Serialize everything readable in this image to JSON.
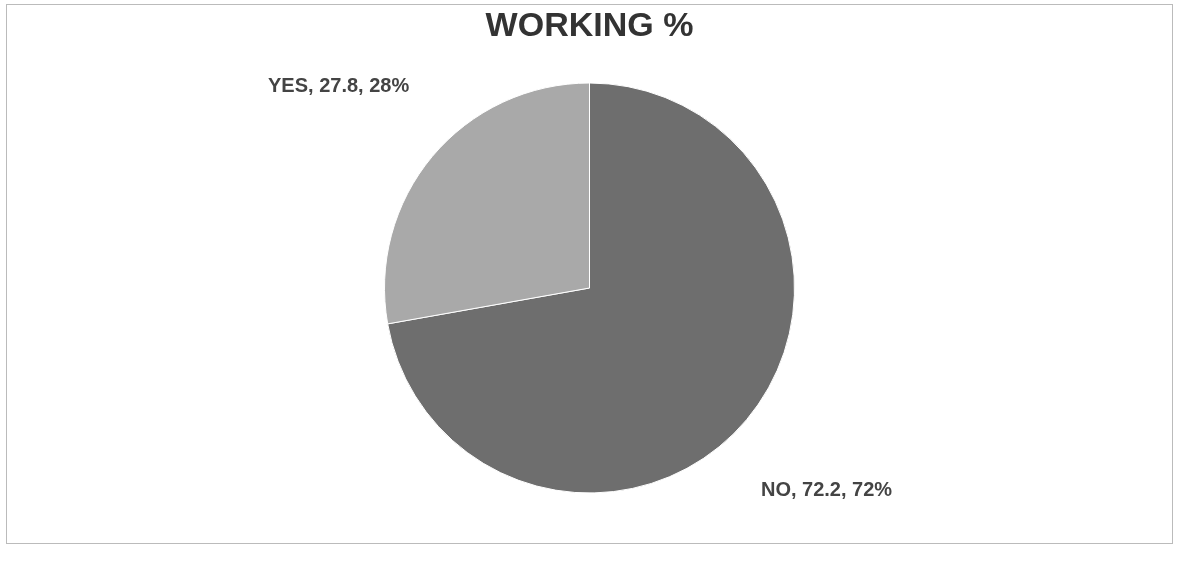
{
  "chart_data": {
    "type": "pie",
    "title": "WORKING %",
    "categories": [
      "NO",
      "YES"
    ],
    "values": [
      72.2,
      27.8
    ],
    "colors": [
      "#6e6e6e",
      "#a9a9a9"
    ],
    "value_labels": [
      ", 72.2, 72%",
      ", 27.8, 28%"
    ],
    "legend": false
  }
}
